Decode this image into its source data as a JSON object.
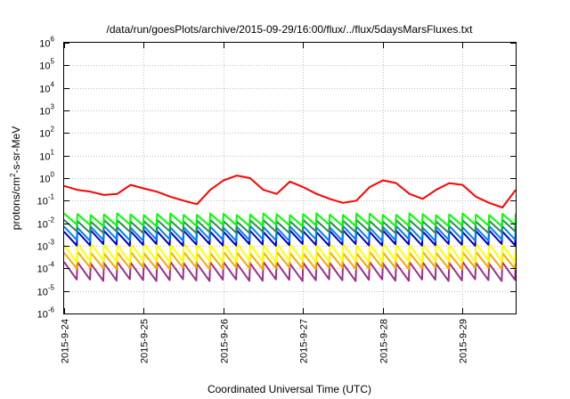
{
  "chart_data": {
    "type": "line",
    "title": "/data/run/goesPlots/archive/2015-09-29/16:00/flux/../flux/5daysMarsFluxes.txt",
    "xlabel": "Coordinated Universal Time (UTC)",
    "ylabel": {
      "prefix": "protons/cm",
      "sup": "2",
      "suffix": "-s-sr-MeV"
    },
    "yscale": "log",
    "ylim": [
      1e-06,
      1000000.0
    ],
    "y_tick_exponents": [
      -6,
      -5,
      -4,
      -3,
      -2,
      -1,
      0,
      1,
      2,
      3,
      4,
      5,
      6
    ],
    "y_tick_base": "10",
    "xlim": [
      "2015-09-24",
      "2015-09-29 16:00"
    ],
    "x_ticks": [
      "2015-9-24",
      "2015-9-25",
      "2015-9-26",
      "2015-9-27",
      "2015-9-28",
      "2015-9-29"
    ],
    "grid": true,
    "legend": "none",
    "sawtooth_period_hours": 4,
    "series": [
      {
        "color": "#ff0000",
        "values": [
          {
            "x": "2015-09-24 00:00",
            "y": 0.45
          },
          {
            "x": "2015-09-24 04:00",
            "y": 0.3
          },
          {
            "x": "2015-09-24 08:00",
            "y": 0.25
          },
          {
            "x": "2015-09-24 12:00",
            "y": 0.18
          },
          {
            "x": "2015-09-24 16:00",
            "y": 0.2
          },
          {
            "x": "2015-09-24 20:00",
            "y": 0.5
          },
          {
            "x": "2015-09-25 00:00",
            "y": 0.35
          },
          {
            "x": "2015-09-25 04:00",
            "y": 0.25
          },
          {
            "x": "2015-09-25 08:00",
            "y": 0.15
          },
          {
            "x": "2015-09-25 12:00",
            "y": 0.1
          },
          {
            "x": "2015-09-25 16:00",
            "y": 0.07
          },
          {
            "x": "2015-09-25 20:00",
            "y": 0.3
          },
          {
            "x": "2015-09-26 00:00",
            "y": 0.8
          },
          {
            "x": "2015-09-26 04:00",
            "y": 1.3
          },
          {
            "x": "2015-09-26 08:00",
            "y": 1.0
          },
          {
            "x": "2015-09-26 12:00",
            "y": 0.3
          },
          {
            "x": "2015-09-26 16:00",
            "y": 0.2
          },
          {
            "x": "2015-09-26 20:00",
            "y": 0.7
          },
          {
            "x": "2015-09-27 00:00",
            "y": 0.4
          },
          {
            "x": "2015-09-27 04:00",
            "y": 0.2
          },
          {
            "x": "2015-09-27 08:00",
            "y": 0.12
          },
          {
            "x": "2015-09-27 12:00",
            "y": 0.08
          },
          {
            "x": "2015-09-27 16:00",
            "y": 0.1
          },
          {
            "x": "2015-09-27 20:00",
            "y": 0.4
          },
          {
            "x": "2015-09-28 00:00",
            "y": 0.8
          },
          {
            "x": "2015-09-28 04:00",
            "y": 0.6
          },
          {
            "x": "2015-09-28 08:00",
            "y": 0.2
          },
          {
            "x": "2015-09-28 12:00",
            "y": 0.12
          },
          {
            "x": "2015-09-28 16:00",
            "y": 0.3
          },
          {
            "x": "2015-09-28 20:00",
            "y": 0.6
          },
          {
            "x": "2015-09-29 00:00",
            "y": 0.5
          },
          {
            "x": "2015-09-29 04:00",
            "y": 0.15
          },
          {
            "x": "2015-09-29 08:00",
            "y": 0.08
          },
          {
            "x": "2015-09-29 12:00",
            "y": 0.05
          },
          {
            "x": "2015-09-29 16:00",
            "y": 0.3
          }
        ]
      },
      {
        "color": "#00ff00",
        "peak": 0.025,
        "trough": 0.008
      },
      {
        "color": "#2e8b57",
        "peak": 0.013,
        "trough": 0.004
      },
      {
        "color": "#0080ff",
        "peak": 0.007,
        "trough": 0.0018
      },
      {
        "color": "#0000cd",
        "peak": 0.0045,
        "trough": 0.0011
      },
      {
        "color": "#ffff00",
        "peak": 0.0012,
        "trough": 0.0002
      },
      {
        "color": "#ffa500",
        "peak": 0.0005,
        "trough": 0.0001
      },
      {
        "color": "#9b2f8a",
        "peak": 0.00018,
        "trough": 3e-05
      }
    ]
  }
}
